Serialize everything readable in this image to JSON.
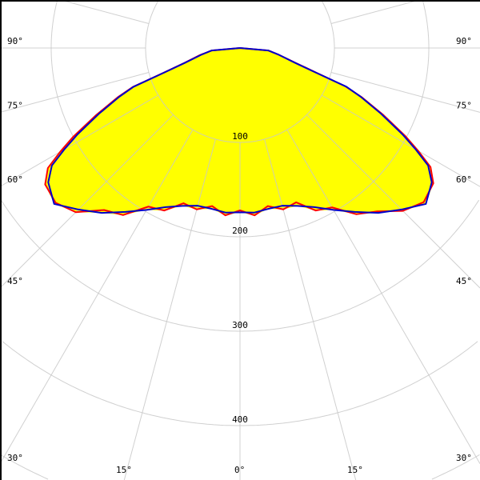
{
  "chart_data": {
    "type": "polar",
    "title": "",
    "radial_ticks": [
      100,
      200,
      300,
      400,
      500
    ],
    "radial_tick_labels": [
      "100",
      "200",
      "300",
      "400"
    ],
    "angle_labels": {
      "left": [
        "90°",
        "75°",
        "60°",
        "45°",
        "30°",
        "15°"
      ],
      "right": [
        "90°",
        "75°",
        "60°",
        "45°",
        "30°",
        "15°"
      ],
      "bottom": "0°"
    },
    "grid": true,
    "angle_step_deg": 15,
    "colors": {
      "fill": "#ffff00",
      "series_a": "#ff0000",
      "series_b": "#0000cc",
      "grid": "#c8c8c8"
    },
    "angles": [
      -90,
      -85,
      -80,
      -75,
      -72,
      -70,
      -68,
      -65,
      -62,
      -60,
      -58,
      -55,
      -50,
      -45,
      -40,
      -35,
      -30,
      -25,
      -20,
      -15,
      -10,
      -5,
      0,
      5,
      10,
      15,
      20,
      25,
      30,
      35,
      40,
      45,
      50,
      55,
      58,
      60,
      62,
      65,
      68,
      70,
      72,
      75,
      80,
      85,
      90
    ],
    "series": [
      {
        "color": "#ff0000",
        "values": [
          0,
          30,
          43,
          61,
          86,
          121,
          140,
          168,
          200,
          220,
          240,
          252,
          255,
          246,
          224,
          216,
          194,
          190,
          175,
          177,
          170,
          178,
          172,
          178,
          170,
          177,
          174,
          190,
          195,
          215,
          226,
          244,
          254,
          250,
          238,
          218,
          198,
          167,
          139,
          119,
          86,
          61,
          42,
          30,
          0
        ]
      },
      {
        "color": "#0000cc",
        "values": [
          0,
          30,
          42,
          60,
          85,
          120,
          138,
          165,
          195,
          215,
          235,
          248,
          257,
          242,
          228,
          212,
          198,
          186,
          178,
          173,
          173,
          175,
          174,
          175,
          173,
          173,
          178,
          186,
          198,
          212,
          228,
          242,
          257,
          248,
          235,
          215,
          195,
          165,
          138,
          120,
          85,
          60,
          42,
          30,
          0
        ]
      }
    ]
  }
}
